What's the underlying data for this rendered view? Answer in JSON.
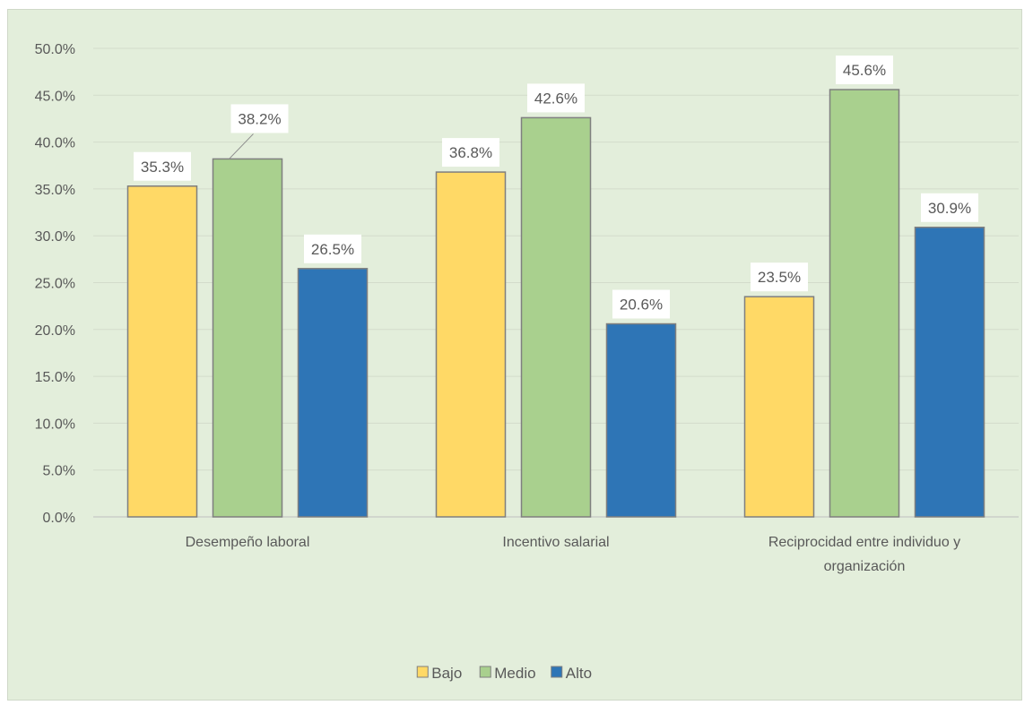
{
  "chart_data": {
    "type": "bar",
    "title": "",
    "xlabel": "",
    "ylabel": "",
    "ylim": [
      0,
      50
    ],
    "y_tick_step": 5,
    "y_tick_format": "percent_1dp",
    "grid": true,
    "legend_position": "bottom",
    "categories": [
      [
        "Desempeño laboral"
      ],
      [
        "Incentivo salarial"
      ],
      [
        "Reciprocidad entre individuo y",
        "organización"
      ]
    ],
    "series": [
      {
        "name": "Bajo",
        "color": "#ffd966",
        "values": [
          35.3,
          36.8,
          23.5
        ],
        "labels": [
          "35.3%",
          "36.8%",
          "23.5%"
        ]
      },
      {
        "name": "Medio",
        "color": "#a9d08e",
        "values": [
          38.2,
          42.6,
          45.6
        ],
        "labels": [
          "38.2%",
          "42.6%",
          "45.6%"
        ]
      },
      {
        "name": "Alto",
        "color": "#2e75b6",
        "values": [
          26.5,
          20.6,
          30.9
        ],
        "labels": [
          "26.5%",
          "20.6%",
          "30.9%"
        ]
      }
    ]
  }
}
